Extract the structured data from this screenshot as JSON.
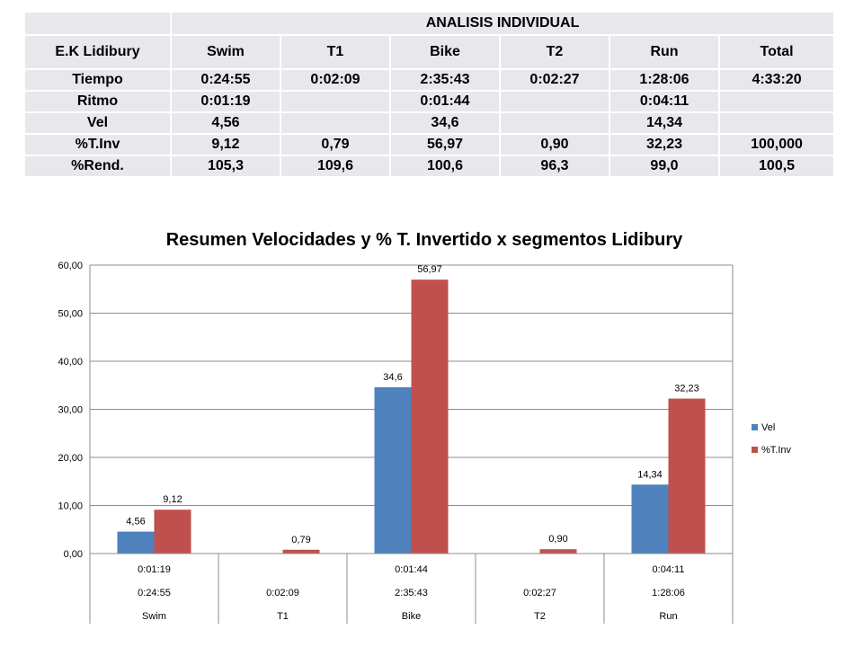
{
  "table": {
    "title": "ANALISIS INDIVIDUAL",
    "athlete": "E.K Lidibury",
    "columns": [
      "Swim",
      "T1",
      "Bike",
      "T2",
      "Run",
      "Total"
    ],
    "rows": [
      {
        "label": "Tiempo",
        "cells": [
          "0:24:55",
          "0:02:09",
          "2:35:43",
          "0:02:27",
          "1:28:06",
          "4:33:20"
        ]
      },
      {
        "label": "Ritmo",
        "cells": [
          "0:01:19",
          "",
          "0:01:44",
          "",
          "0:04:11",
          ""
        ]
      },
      {
        "label": "Vel",
        "cells": [
          "4,56",
          "",
          "34,6",
          "",
          "14,34",
          ""
        ]
      },
      {
        "label": "%T.Inv",
        "cells": [
          "9,12",
          "0,79",
          "56,97",
          "0,90",
          "32,23",
          "100,000"
        ]
      },
      {
        "label": "%Rend.",
        "cells": [
          "105,3",
          "109,6",
          "100,6",
          "96,3",
          "99,0",
          "100,5"
        ]
      }
    ]
  },
  "chart_data": {
    "type": "bar",
    "title": "Resumen Velocidades y % T. Invertido x segmentos Lidibury",
    "categories": [
      "Swim",
      "T1",
      "Bike",
      "T2",
      "Run"
    ],
    "category_rows": [
      [
        "0:01:19",
        "",
        "0:01:44",
        "",
        "0:04:11"
      ],
      [
        "0:24:55",
        "0:02:09",
        "2:35:43",
        "0:02:27",
        "1:28:06"
      ],
      [
        "Swim",
        "T1",
        "Bike",
        "T2",
        "Run"
      ]
    ],
    "series": [
      {
        "name": "Vel",
        "color": "#4f81bd",
        "values": [
          4.56,
          null,
          34.6,
          null,
          14.34
        ],
        "labels": [
          "4,56",
          "",
          "34,6",
          "",
          "14,34"
        ]
      },
      {
        "name": "%T.Inv",
        "color": "#c0504d",
        "values": [
          9.12,
          0.79,
          56.97,
          0.9,
          32.23
        ],
        "labels": [
          "9,12",
          "0,79",
          "56,97",
          "0,90",
          "32,23"
        ]
      }
    ],
    "ylim": [
      0,
      60
    ],
    "yticks": [
      "0,00",
      "10,00",
      "20,00",
      "30,00",
      "40,00",
      "50,00",
      "60,00"
    ],
    "grid": true,
    "legend": "right"
  }
}
